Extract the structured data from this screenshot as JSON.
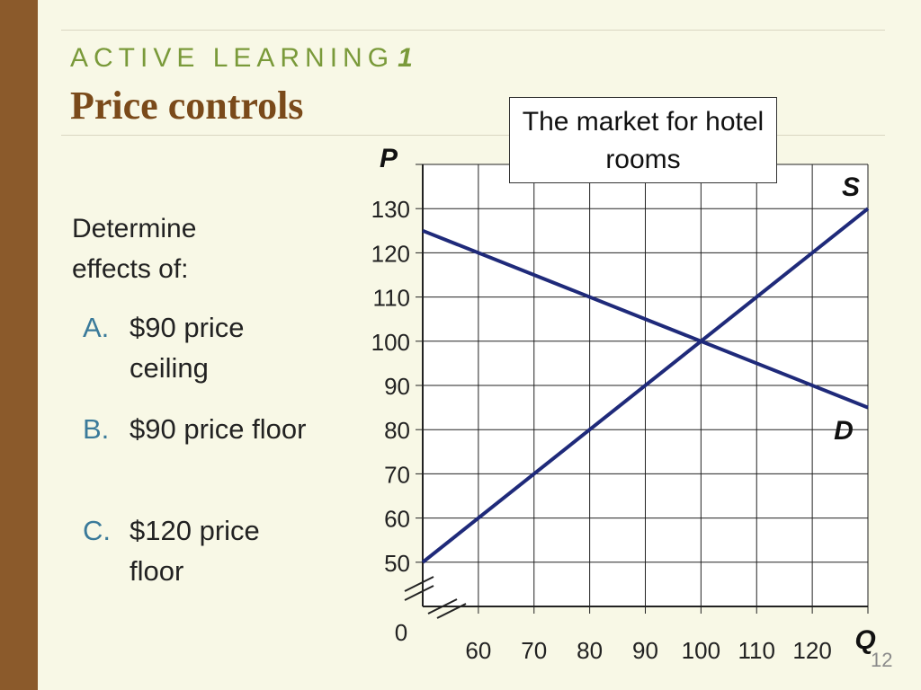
{
  "slide": {
    "eyebrow": "ACTIVE LEARNING",
    "eyebrow_number": "1",
    "title": "Price controls",
    "intro": "Determine effects of:",
    "items": [
      {
        "letter": "A.",
        "text": "$90 price ceiling"
      },
      {
        "letter": "B.",
        "text": "$90 price floor"
      },
      {
        "letter": "C.",
        "text": "$120 price floor"
      }
    ],
    "page_number": "12",
    "callout": "The market for hotel rooms"
  },
  "colors": {
    "sidebar": "#8b5a2b",
    "eyebrow": "#7a9a3a",
    "title": "#7a4a1a",
    "item_letter": "#3a7a9a",
    "curve": "#1f2a7a"
  },
  "chart_data": {
    "type": "line",
    "title": "The market for hotel rooms",
    "xlabel": "Q",
    "ylabel": "P",
    "origin_label": "0",
    "xlim": [
      50,
      130
    ],
    "ylim": [
      40,
      140
    ],
    "axis_break": true,
    "grid": true,
    "xticks": [
      60,
      70,
      80,
      90,
      100,
      110,
      120
    ],
    "yticks": [
      50,
      60,
      70,
      80,
      90,
      100,
      110,
      120,
      130
    ],
    "series": [
      {
        "name": "S",
        "x": [
          50,
          130
        ],
        "y": [
          50,
          130
        ]
      },
      {
        "name": "D",
        "x": [
          50,
          130
        ],
        "y": [
          125,
          85
        ]
      }
    ]
  }
}
